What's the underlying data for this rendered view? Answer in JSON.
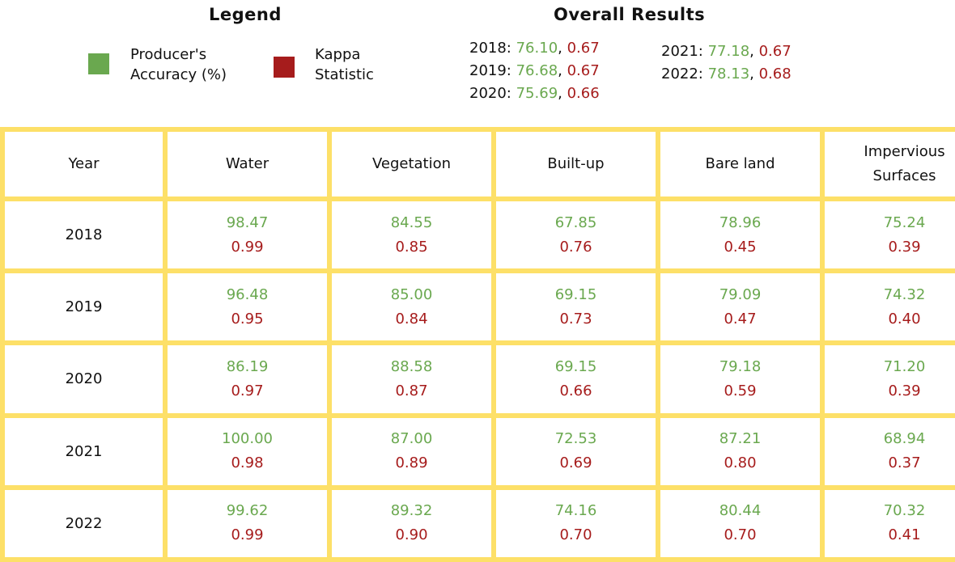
{
  "colors": {
    "producers_accuracy": "#6aa84f",
    "kappa": "#a61c1c",
    "border": "#fde068"
  },
  "legend": {
    "title": "Legend",
    "items": [
      {
        "label": "Producer's\nAccuracy (%)",
        "color": "#6aa84f"
      },
      {
        "label": "Kappa\nStatistic",
        "color": "#a61c1c"
      }
    ]
  },
  "overall": {
    "title": "Overall Results",
    "entries": [
      {
        "year": "2018:",
        "accuracy": "76.10",
        "kappa": "0.67"
      },
      {
        "year": "2019:",
        "accuracy": "76.68",
        "kappa": "0.67"
      },
      {
        "year": "2020:",
        "accuracy": "75.69",
        "kappa": "0.66"
      },
      {
        "year": "2021:",
        "accuracy": "77.18",
        "kappa": "0.67"
      },
      {
        "year": "2022:",
        "accuracy": "78.13",
        "kappa": "0.68"
      }
    ],
    "separator": ", "
  },
  "chart_data": {
    "type": "table",
    "columns": [
      "Year",
      "Water",
      "Vegetation",
      "Built-up",
      "Bare land",
      "Impervious Surfaces"
    ],
    "rows": [
      {
        "year": "2018",
        "cells": [
          {
            "pa": "98.47",
            "kappa": "0.99"
          },
          {
            "pa": "84.55",
            "kappa": "0.85"
          },
          {
            "pa": "67.85",
            "kappa": "0.76"
          },
          {
            "pa": "78.96",
            "kappa": "0.45"
          },
          {
            "pa": "75.24",
            "kappa": "0.39"
          }
        ]
      },
      {
        "year": "2019",
        "cells": [
          {
            "pa": "96.48",
            "kappa": "0.95"
          },
          {
            "pa": "85.00",
            "kappa": "0.84"
          },
          {
            "pa": "69.15",
            "kappa": "0.73"
          },
          {
            "pa": "79.09",
            "kappa": "0.47"
          },
          {
            "pa": "74.32",
            "kappa": "0.40"
          }
        ]
      },
      {
        "year": "2020",
        "cells": [
          {
            "pa": "86.19",
            "kappa": "0.97"
          },
          {
            "pa": "88.58",
            "kappa": "0.87"
          },
          {
            "pa": "69.15",
            "kappa": "0.66"
          },
          {
            "pa": "79.18",
            "kappa": "0.59"
          },
          {
            "pa": "71.20",
            "kappa": "0.39"
          }
        ]
      },
      {
        "year": "2021",
        "cells": [
          {
            "pa": "100.00",
            "kappa": "0.98"
          },
          {
            "pa": "87.00",
            "kappa": "0.89"
          },
          {
            "pa": "72.53",
            "kappa": "0.69"
          },
          {
            "pa": "87.21",
            "kappa": "0.80"
          },
          {
            "pa": "68.94",
            "kappa": "0.37"
          }
        ]
      },
      {
        "year": "2022",
        "cells": [
          {
            "pa": "99.62",
            "kappa": "0.99"
          },
          {
            "pa": "89.32",
            "kappa": "0.90"
          },
          {
            "pa": "74.16",
            "kappa": "0.70"
          },
          {
            "pa": "80.44",
            "kappa": "0.70"
          },
          {
            "pa": "70.32",
            "kappa": "0.41"
          }
        ]
      }
    ]
  }
}
